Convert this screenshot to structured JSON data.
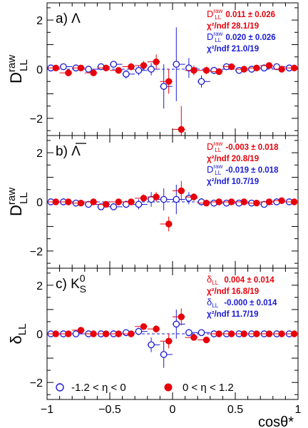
{
  "chart_data": {
    "type": "scatter",
    "xlabel": "cosθ*",
    "xlim": [
      -1,
      1
    ],
    "x_ticks": [
      -1,
      -0.5,
      0,
      0.5,
      1
    ],
    "x_tick_labels": [
      "−1",
      "−0.5",
      "0",
      "0.5",
      "1"
    ],
    "colors": {
      "series_a": "#1a1ad6",
      "series_b": "#e8000b"
    },
    "legend": [
      {
        "label": "-1.2 < η < 0",
        "marker": "open-circle",
        "color": "#1a1ad6"
      },
      {
        "label": "0 < η < 1.2",
        "marker": "filled-circle",
        "color": "#e8000b"
      }
    ],
    "panels": [
      {
        "label": "a) Λ",
        "ylabel_main": "D",
        "ylabel_sup": "raw",
        "ylabel_sub": "LL",
        "ylim": [
          -2.7,
          2.7
        ],
        "y_ticks": [
          -2,
          0,
          2
        ],
        "y_tick_labels": [
          "−2",
          "0",
          "2"
        ],
        "stats": {
          "red": {
            "sym": "D",
            "sup": "raw",
            "sub": "LL",
            "value": "0.011 ± 0.026",
            "chi_label": "χ²/ndf",
            "chi_value": "28.1/19"
          },
          "blue": {
            "sym": "D",
            "sup": "raw",
            "sub": "LL",
            "value": "0.020 ± 0.026",
            "chi_label": "χ²/ndf",
            "chi_value": "21.0/19"
          }
        },
        "series": [
          {
            "x": [
              -0.95,
              -0.85,
              -0.75,
              -0.65,
              -0.55,
              -0.45,
              -0.35,
              -0.25,
              -0.15,
              -0.05,
              0.05,
              0.15,
              0.25,
              0.35,
              0.45,
              0.55,
              0.65,
              0.75,
              0.85,
              0.95
            ],
            "y": [
              0.05,
              0.1,
              0.05,
              0.0,
              0.1,
              0.2,
              -0.2,
              -0.05,
              0.0,
              -0.7,
              0.2,
              0.05,
              -0.5,
              -0.05,
              0.1,
              -0.05,
              0.0,
              0.05,
              0.1,
              0.05
            ],
            "err": [
              0.05,
              0.05,
              0.05,
              0.05,
              0.08,
              0.12,
              0.18,
              0.2,
              0.25,
              0.9,
              1.5,
              0.4,
              0.25,
              0.15,
              0.1,
              0.08,
              0.05,
              0.05,
              0.05,
              0.05
            ]
          },
          {
            "x": [
              -0.95,
              -0.85,
              -0.75,
              -0.65,
              -0.55,
              -0.45,
              -0.35,
              -0.25,
              -0.15,
              -0.05,
              0.05,
              0.15,
              0.25,
              0.35,
              0.45,
              0.55,
              0.65,
              0.75,
              0.85,
              0.95
            ],
            "y": [
              0.05,
              -0.15,
              0.05,
              -0.15,
              0.05,
              -0.05,
              0.1,
              0.15,
              0.3,
              -0.5,
              -2.45,
              -0.05,
              -0.05,
              -0.1,
              0.1,
              0.0,
              0.05,
              0.15,
              0.0,
              0.05
            ],
            "err": [
              0.05,
              0.05,
              0.05,
              0.06,
              0.08,
              0.1,
              0.15,
              0.18,
              0.3,
              0.5,
              0.95,
              0.2,
              0.15,
              0.1,
              0.08,
              0.06,
              0.05,
              0.05,
              0.05,
              0.05
            ]
          }
        ]
      },
      {
        "label": "b) Λ",
        "label_overline": true,
        "ylabel_main": "D",
        "ylabel_sup": "raw",
        "ylabel_sub": "LL",
        "ylim": [
          -2.7,
          2.7
        ],
        "y_ticks": [
          -2,
          0,
          2
        ],
        "y_tick_labels": [
          "−2",
          "0",
          "2"
        ],
        "stats": {
          "red": {
            "sym": "D",
            "sup": "raw",
            "sub": "LL",
            "value": "-0.003 ± 0.018",
            "chi_label": "χ²/ndf",
            "chi_value": "20.8/19"
          },
          "blue": {
            "sym": "D",
            "sup": "raw",
            "sub": "LL",
            "value": "-0.019 ± 0.018",
            "chi_label": "χ²/ndf",
            "chi_value": "10.7/19"
          }
        },
        "series": [
          {
            "x": [
              -0.95,
              -0.85,
              -0.75,
              -0.65,
              -0.55,
              -0.45,
              -0.35,
              -0.25,
              -0.15,
              -0.05,
              0.05,
              0.15,
              0.25,
              0.35,
              0.45,
              0.55,
              0.65,
              0.75,
              0.85,
              0.95
            ],
            "y": [
              0.0,
              0.0,
              -0.05,
              -0.1,
              -0.2,
              -0.2,
              -0.1,
              -0.1,
              0.1,
              0.1,
              0.1,
              0.15,
              0.0,
              -0.05,
              -0.05,
              -0.05,
              -0.05,
              -0.1,
              0.0,
              0.0
            ],
            "err": [
              0.05,
              0.05,
              0.05,
              0.06,
              0.08,
              0.1,
              0.15,
              0.2,
              0.3,
              0.45,
              0.6,
              0.25,
              0.15,
              0.1,
              0.08,
              0.06,
              0.05,
              0.05,
              0.05,
              0.05
            ]
          },
          {
            "x": [
              -0.95,
              -0.85,
              -0.75,
              -0.65,
              -0.55,
              -0.45,
              -0.35,
              -0.25,
              -0.15,
              -0.05,
              0.05,
              0.15,
              0.25,
              0.35,
              0.45,
              0.55,
              0.65,
              0.75,
              0.85,
              0.95
            ],
            "y": [
              0.0,
              0.0,
              -0.05,
              0.0,
              -0.1,
              0.0,
              0.0,
              0.15,
              0.2,
              -0.9,
              0.45,
              0.2,
              -0.05,
              0.0,
              0.0,
              0.0,
              -0.05,
              0.0,
              0.05,
              0.0
            ],
            "err": [
              0.05,
              0.05,
              0.05,
              0.05,
              0.06,
              0.08,
              0.1,
              0.15,
              0.2,
              0.3,
              0.4,
              0.15,
              0.1,
              0.08,
              0.06,
              0.05,
              0.05,
              0.05,
              0.05,
              0.05
            ]
          }
        ]
      },
      {
        "label": "c) K",
        "label_sub": "S",
        "label_sup": "0",
        "ylabel_main": "δ",
        "ylabel_sub": "LL",
        "ylim": [
          -2.7,
          2.7
        ],
        "y_ticks": [
          -2,
          0,
          2
        ],
        "y_tick_labels": [
          "−2",
          "0",
          "2"
        ],
        "stats": {
          "red": {
            "sym": "δ",
            "sub": "LL",
            "value": "0.004 ± 0.014",
            "chi_label": "χ²/ndf",
            "chi_value": "16.8/19"
          },
          "blue": {
            "sym": "δ",
            "sub": "LL",
            "value": "-0.000 ± 0.014",
            "chi_label": "χ²/ndf",
            "chi_value": "11.7/19"
          }
        },
        "series": [
          {
            "x": [
              -0.95,
              -0.85,
              -0.75,
              -0.65,
              -0.55,
              -0.45,
              -0.35,
              -0.25,
              -0.15,
              -0.05,
              0.05,
              0.15,
              0.25,
              0.35,
              0.45,
              0.55,
              0.65,
              0.75,
              0.85,
              0.95
            ],
            "y": [
              0.0,
              0.0,
              0.0,
              0.0,
              0.0,
              0.0,
              0.05,
              0.1,
              -0.45,
              -0.85,
              0.4,
              0.05,
              0.05,
              0.0,
              0.0,
              0.0,
              0.0,
              0.0,
              0.0,
              0.0
            ],
            "err": [
              0.04,
              0.04,
              0.04,
              0.04,
              0.05,
              0.06,
              0.1,
              0.15,
              0.3,
              0.55,
              0.6,
              0.15,
              0.1,
              0.06,
              0.05,
              0.04,
              0.04,
              0.04,
              0.04,
              0.04
            ]
          },
          {
            "x": [
              -0.95,
              -0.85,
              -0.75,
              -0.65,
              -0.55,
              -0.45,
              -0.35,
              -0.25,
              -0.15,
              -0.05,
              0.05,
              0.15,
              0.25,
              0.35,
              0.45,
              0.55,
              0.65,
              0.75,
              0.85,
              0.95
            ],
            "y": [
              0.0,
              0.0,
              0.15,
              0.0,
              0.0,
              0.0,
              0.0,
              0.3,
              0.2,
              -0.3,
              0.7,
              -0.15,
              -0.25,
              0.0,
              0.0,
              0.0,
              0.0,
              0.0,
              0.0,
              0.0
            ],
            "err": [
              0.04,
              0.04,
              0.05,
              0.04,
              0.05,
              0.05,
              0.08,
              0.1,
              0.15,
              0.3,
              0.35,
              0.1,
              0.08,
              0.05,
              0.04,
              0.04,
              0.04,
              0.04,
              0.04,
              0.04
            ]
          }
        ]
      }
    ]
  }
}
